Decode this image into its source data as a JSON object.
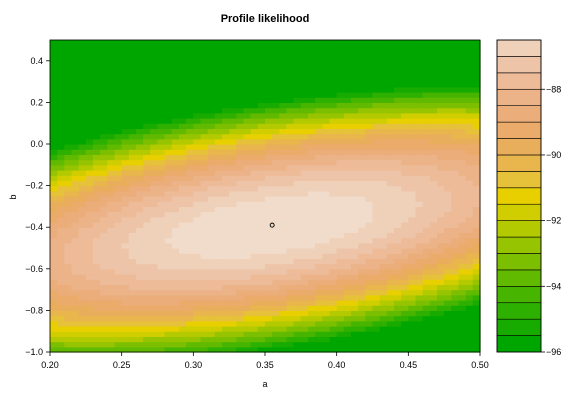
{
  "chart_data": {
    "type": "heatmap",
    "subtype": "filled-contour",
    "title": "Profile likelihood",
    "xlabel": "a",
    "ylabel": "b",
    "xlim": [
      0.2,
      0.5
    ],
    "ylim": [
      -1.0,
      0.5
    ],
    "x_ticks": [
      "0.20",
      "0.25",
      "0.30",
      "0.35",
      "0.40",
      "0.45",
      "0.50"
    ],
    "y_ticks": [
      "-1.0",
      "-0.8",
      "-0.6",
      "-0.4",
      "-0.2",
      "0.0",
      "0.2",
      "0.4"
    ],
    "maximum_point": {
      "a": 0.355,
      "b": -0.39
    },
    "max_loglik": -86.5,
    "colorbar": {
      "range": [
        -96,
        -86.5
      ],
      "ticks": [
        "-88",
        "-90",
        "-92",
        "-94",
        "-96"
      ],
      "levels": [
        -96,
        -95.5,
        -95,
        -94.5,
        -94,
        -93.5,
        -93,
        -92.5,
        -92,
        -91.5,
        -91,
        -90.5,
        -90,
        -89.5,
        -89,
        -88.5,
        -88,
        -87.5,
        -87,
        -86.5
      ],
      "colors": [
        "#00a600",
        "#17ab00",
        "#2eb000",
        "#47b500",
        "#61ba00",
        "#7bbf00",
        "#96c400",
        "#b3c900",
        "#d0ce00",
        "#e8d000",
        "#e6c13a",
        "#e8b64c",
        "#e9ae5c",
        "#eaab6b",
        "#ebad7a",
        "#ecb389",
        "#edbb98",
        "#eec4a8",
        "#efd0b9",
        "#f1dccb",
        "#f2f2f2"
      ]
    }
  }
}
